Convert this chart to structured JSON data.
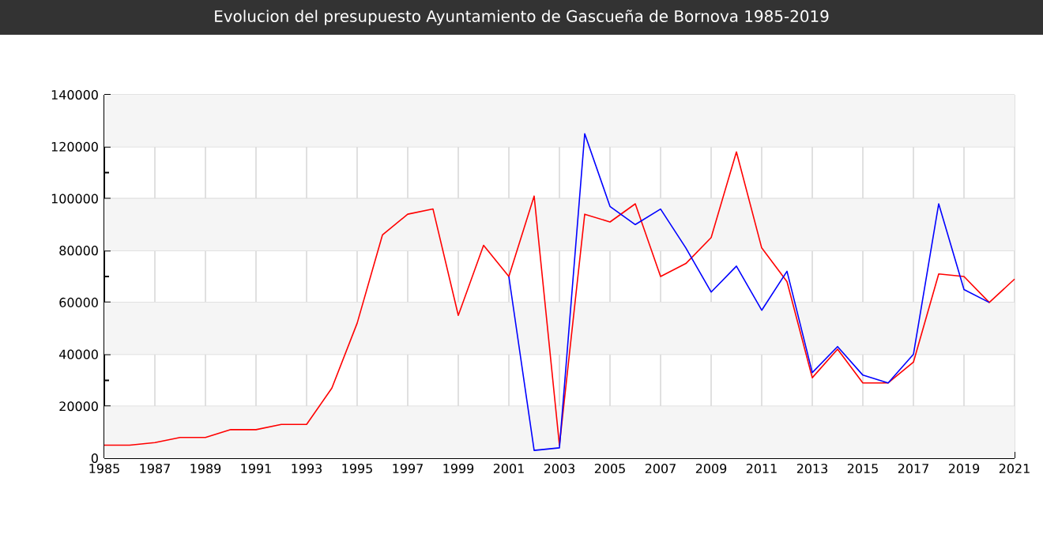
{
  "chart_data": {
    "type": "line",
    "title": "Evolucion del presupuesto Ayuntamiento de Gascueña de Bornova 1985-2019",
    "series": [
      {
        "color": "#ff0000",
        "x": [
          1985,
          1986,
          1987,
          1988,
          1989,
          1990,
          1991,
          1992,
          1993,
          1994,
          1995,
          1996,
          1997,
          1998,
          1999,
          2000,
          2001,
          2002,
          2003,
          2004,
          2005,
          2006,
          2007,
          2008,
          2009,
          2010,
          2011,
          2012,
          2013,
          2014,
          2015,
          2016,
          2017,
          2018,
          2019,
          2020,
          2021
        ],
        "values": [
          5000,
          5000,
          6000,
          8000,
          8000,
          11000,
          11000,
          13000,
          13000,
          27000,
          52000,
          86000,
          94000,
          96000,
          55000,
          82000,
          70000,
          101000,
          5000,
          94000,
          91000,
          98000,
          70000,
          75000,
          85000,
          118000,
          81000,
          68000,
          31000,
          42000,
          29000,
          29000,
          37000,
          71000,
          70000,
          60000,
          69000
        ]
      },
      {
        "color": "#0000ff",
        "x": [
          2001,
          2002,
          2003,
          2004,
          2005,
          2006,
          2007,
          2008,
          2009,
          2010,
          2011,
          2012,
          2013,
          2014,
          2015,
          2016,
          2017,
          2018,
          2019,
          2020
        ],
        "values": [
          70000,
          3000,
          4000,
          125000,
          97000,
          90000,
          96000,
          81000,
          64000,
          74000,
          57000,
          72000,
          33000,
          43000,
          32000,
          29000,
          40000,
          98000,
          65000,
          60000
        ]
      }
    ],
    "xlim": [
      1985,
      2021
    ],
    "xticks": [
      1985,
      1987,
      1989,
      1991,
      1993,
      1995,
      1997,
      1999,
      2001,
      2003,
      2005,
      2007,
      2009,
      2011,
      2013,
      2015,
      2017,
      2019,
      2021
    ],
    "ylim": [
      0,
      140000
    ],
    "yticks": [
      0,
      20000,
      40000,
      60000,
      80000,
      100000,
      120000,
      140000
    ],
    "grid": true,
    "marker": "none",
    "line_style": "solid"
  }
}
